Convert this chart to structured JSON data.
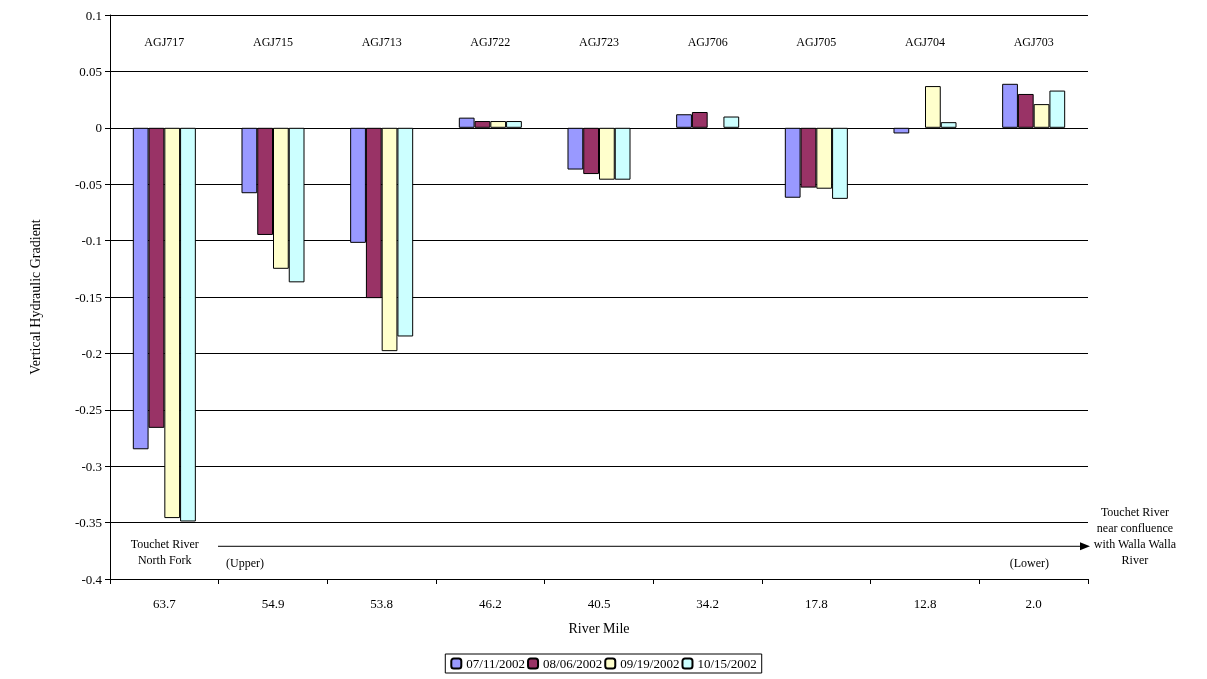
{
  "chart_data": {
    "type": "bar",
    "xlabel": "River Mile",
    "ylabel": "Vertical Hydraulic Gradient",
    "categories": [
      "63.7",
      "54.9",
      "53.8",
      "46.2",
      "40.5",
      "34.2",
      "17.8",
      "12.8",
      "2.0"
    ],
    "series": [
      {
        "name": "07/11/2002",
        "color": "#9999ff",
        "values": [
          -0.285,
          -0.058,
          -0.102,
          0.009,
          -0.037,
          0.012,
          -0.062,
          -0.005,
          0.039
        ]
      },
      {
        "name": "08/06/2002",
        "color": "#993366",
        "values": [
          -0.266,
          -0.095,
          -0.151,
          0.006,
          -0.041,
          0.014,
          -0.053,
          null,
          0.03
        ]
      },
      {
        "name": "09/19/2002",
        "color": "#ffffcc",
        "values": [
          -0.346,
          -0.125,
          -0.198,
          0.006,
          -0.046,
          null,
          -0.054,
          0.037,
          0.021
        ]
      },
      {
        "name": "10/15/2002",
        "color": "#ccffff",
        "values": [
          -0.349,
          -0.137,
          -0.185,
          0.006,
          -0.046,
          0.01,
          -0.063,
          0.005,
          0.033
        ]
      }
    ],
    "ylim": [
      -0.4,
      0.1
    ],
    "yticks": [
      -0.4,
      -0.35,
      -0.3,
      -0.25,
      -0.2,
      -0.15,
      -0.1,
      -0.05,
      0,
      0.05,
      0.1
    ],
    "grid": "y",
    "legend": "bottom",
    "annotations": [
      "AGJ717",
      "AGJ715",
      "AGJ713",
      "AGJ722",
      "AGJ723",
      "AGJ706",
      "AGJ705",
      "AGJ704",
      "AGJ703",
      "Touchet River\nNorth Fork",
      "(Upper)",
      "(Lower)",
      "Touchet River\nnear confluence\nwith Walla Walla\nRiver"
    ]
  }
}
